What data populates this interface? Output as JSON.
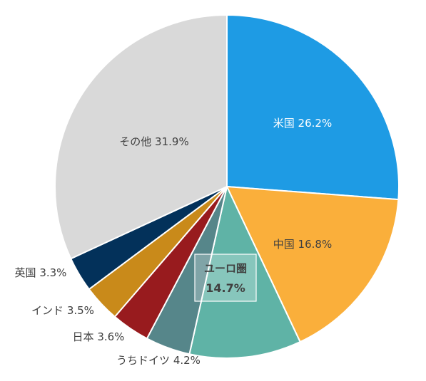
{
  "chart_data": {
    "type": "pie",
    "slices": [
      {
        "label": "米国 26.2%",
        "value": 26.2,
        "color": "#1E9BE4",
        "label_color": "#ffffff"
      },
      {
        "label": "中国 16.8%",
        "value": 16.8,
        "color": "#FAAF3B",
        "label_color": "#404040"
      },
      {
        "label": "",
        "value": 10.5,
        "color": "#5FB3A6",
        "label_color": "#404040"
      },
      {
        "label": "うちドイツ 4.2%",
        "value": 4.2,
        "color": "#56868A",
        "label_color": "#404040"
      },
      {
        "label": "日本 3.6%",
        "value": 3.6,
        "color": "#981B1E",
        "label_color": "#404040"
      },
      {
        "label": "インド 3.5%",
        "value": 3.5,
        "color": "#C98A1A",
        "label_color": "#404040"
      },
      {
        "label": "英国 3.3%",
        "value": 3.3,
        "color": "#03315A",
        "label_color": "#404040"
      },
      {
        "label": "その他 31.9%",
        "value": 31.9,
        "color": "#D9D9D9",
        "label_color": "#404040"
      }
    ],
    "euro_area": {
      "label_line1": "ユーロ圏",
      "label_line2": "14.7%",
      "value": 14.7
    }
  }
}
